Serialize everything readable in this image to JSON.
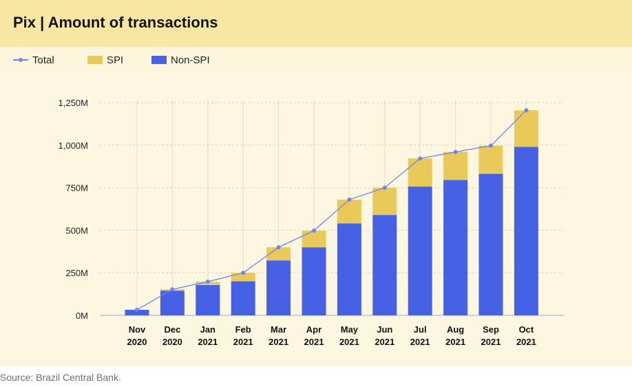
{
  "title": "Pix | Amount of transactions",
  "source": "Source: Brazil Central Bank.",
  "colors": {
    "non_spi": "#4661e6",
    "spi": "#e9c95a",
    "total": "#6f86e8"
  },
  "legend": [
    {
      "label": "Total",
      "kind": "line",
      "color": "#6f86e8"
    },
    {
      "label": "SPI",
      "kind": "bar",
      "color": "#e9c95a"
    },
    {
      "label": "Non-SPI",
      "kind": "bar",
      "color": "#4661e6"
    }
  ],
  "chart_data": {
    "type": "bar",
    "stacked": true,
    "title": "Pix | Amount of transactions",
    "categories": [
      [
        "Nov",
        "2020"
      ],
      [
        "Dec",
        "2020"
      ],
      [
        "Jan",
        "2021"
      ],
      [
        "Feb",
        "2021"
      ],
      [
        "Mar",
        "2021"
      ],
      [
        "Apr",
        "2021"
      ],
      [
        "May",
        "2021"
      ],
      [
        "Jun",
        "2021"
      ],
      [
        "Jul",
        "2021"
      ],
      [
        "Aug",
        "2021"
      ],
      [
        "Sep",
        "2021"
      ],
      [
        "Oct",
        "2021"
      ]
    ],
    "series": [
      {
        "name": "Non-SPI",
        "type": "bar",
        "values": [
          33,
          145,
          178,
          200,
          323,
          400,
          540,
          590,
          757,
          795,
          832,
          990
        ]
      },
      {
        "name": "SPI",
        "type": "bar",
        "values": [
          0,
          8,
          20,
          50,
          77,
          98,
          140,
          160,
          165,
          165,
          165,
          215
        ]
      },
      {
        "name": "Total",
        "type": "line",
        "values": [
          33,
          153,
          198,
          250,
          400,
          498,
          680,
          750,
          922,
          960,
          997,
          1205
        ]
      }
    ],
    "ylim": [
      0,
      1250
    ],
    "yticks": [
      0,
      250,
      500,
      750,
      1000,
      1250
    ],
    "ytick_labels": [
      "0M",
      "250M",
      "500M",
      "750M",
      "1,000M",
      "1,250M"
    ],
    "grid": true,
    "legend_position": "top-left"
  }
}
